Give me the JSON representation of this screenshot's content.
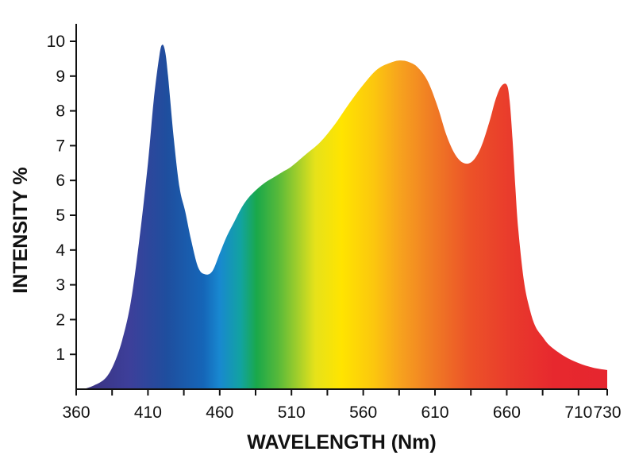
{
  "chart_data": {
    "type": "area",
    "title": "",
    "xlabel": "WAVELENGTH (Nm)",
    "ylabel": "INTENSITY %",
    "xlim": [
      360,
      730
    ],
    "ylim": [
      0,
      10
    ],
    "x_ticks": [
      360,
      410,
      460,
      510,
      560,
      610,
      660,
      710,
      730
    ],
    "y_ticks": [
      1,
      2,
      3,
      4,
      5,
      6,
      7,
      8,
      9,
      10
    ],
    "grid": false,
    "legend": "none",
    "fill": "visible-spectrum gradient (violet to red)",
    "series": [
      {
        "x": [
          365,
          372,
          380,
          386,
          392,
          398,
          404,
          410,
          414,
          418,
          420,
          422,
          424,
          428,
          432,
          436,
          440,
          445,
          450,
          455,
          460,
          465,
          470,
          475,
          480,
          486,
          492,
          498,
          504,
          510,
          520,
          530,
          540,
          550,
          560,
          570,
          580,
          586,
          592,
          598,
          605,
          612,
          618,
          624,
          630,
          636,
          642,
          648,
          652,
          656,
          660,
          662,
          664,
          666,
          668,
          672,
          676,
          680,
          685,
          690,
          700,
          710,
          720,
          730
        ],
        "y": [
          0.0,
          0.1,
          0.3,
          0.7,
          1.4,
          2.5,
          4.3,
          6.5,
          8.3,
          9.6,
          9.9,
          9.7,
          9.0,
          7.2,
          5.8,
          5.1,
          4.3,
          3.5,
          3.3,
          3.4,
          3.9,
          4.4,
          4.8,
          5.2,
          5.5,
          5.75,
          5.95,
          6.1,
          6.25,
          6.4,
          6.75,
          7.1,
          7.6,
          8.2,
          8.75,
          9.2,
          9.4,
          9.45,
          9.4,
          9.25,
          8.85,
          8.1,
          7.3,
          6.75,
          6.5,
          6.55,
          6.95,
          7.7,
          8.3,
          8.7,
          8.75,
          8.3,
          7.2,
          5.8,
          4.6,
          3.1,
          2.3,
          1.8,
          1.5,
          1.25,
          0.95,
          0.75,
          0.62,
          0.55
        ]
      }
    ]
  }
}
